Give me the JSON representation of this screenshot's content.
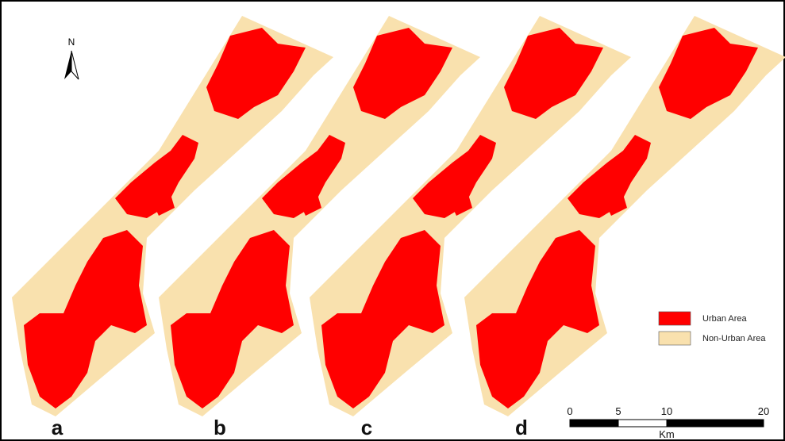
{
  "north_label": "N",
  "panels": [
    "a",
    "b",
    "c",
    "d"
  ],
  "legend": [
    "Urban Area",
    "Non-Urban Area"
  ],
  "scale_bar": {
    "ticks": [
      0,
      5,
      10,
      20
    ],
    "unit": "Km"
  }
}
